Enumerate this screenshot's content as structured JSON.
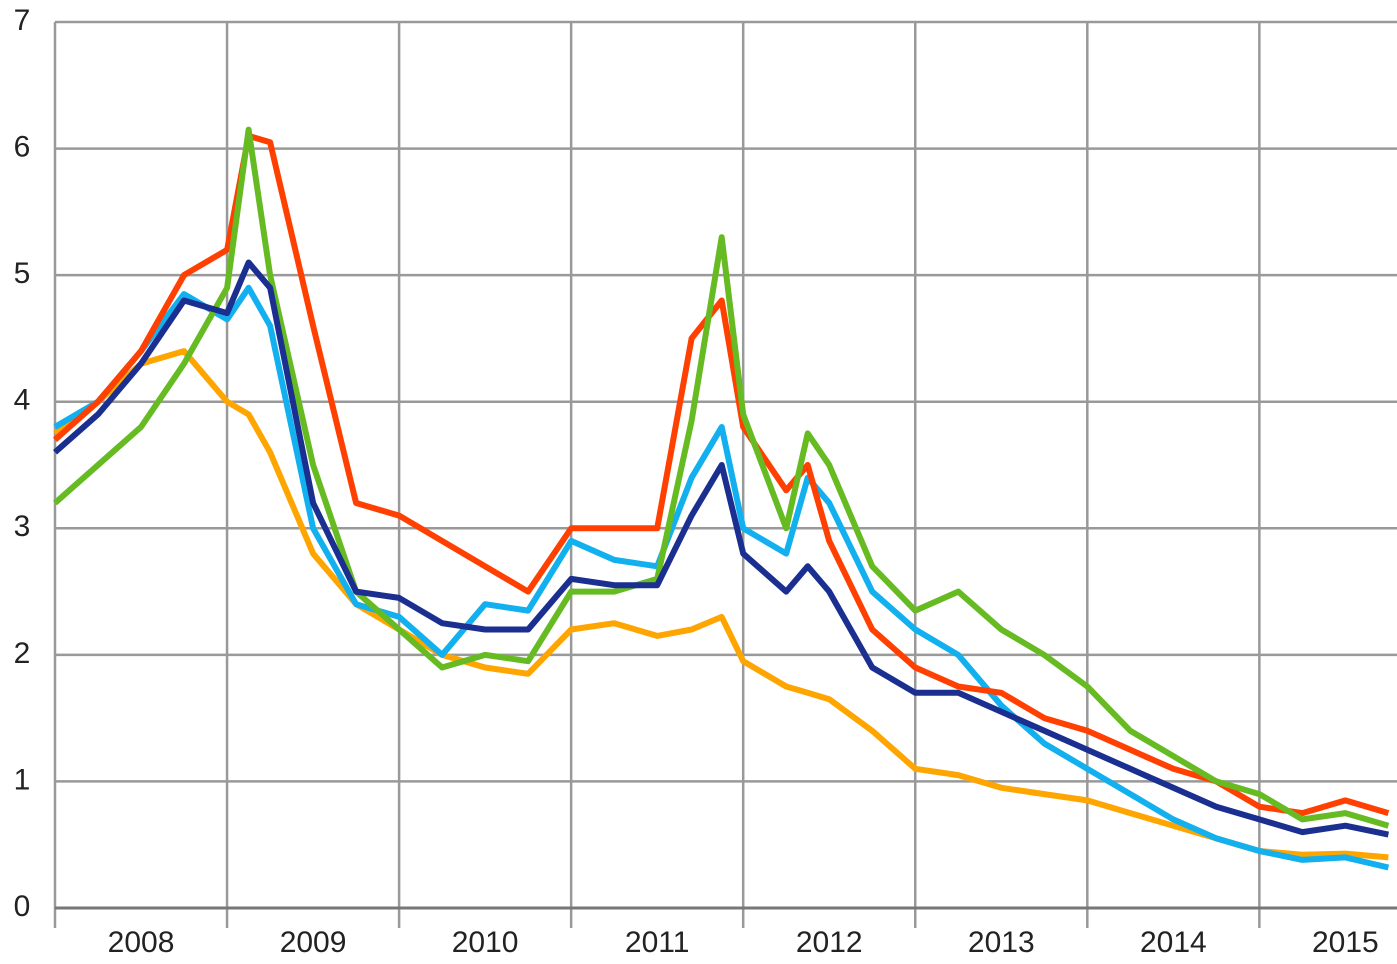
{
  "chart_data": {
    "type": "line",
    "x": [
      2008,
      2008.25,
      2008.5,
      2008.75,
      2009,
      2009.125,
      2009.25,
      2009.5,
      2009.75,
      2010,
      2010.25,
      2010.5,
      2010.75,
      2011,
      2011.25,
      2011.5,
      2011.7,
      2011.875,
      2012,
      2012.25,
      2012.375,
      2012.5,
      2012.75,
      2013,
      2013.25,
      2013.5,
      2013.75,
      2014,
      2014.25,
      2014.5,
      2014.75,
      2015,
      2015.25,
      2015.5,
      2015.75
    ],
    "series": [
      {
        "color": "#ffa500",
        "values": [
          3.75,
          4.0,
          4.3,
          4.4,
          4.0,
          3.9,
          3.6,
          2.8,
          2.4,
          2.2,
          2.0,
          1.9,
          1.85,
          2.2,
          2.25,
          2.15,
          2.2,
          2.3,
          1.95,
          1.75,
          1.7,
          1.65,
          1.4,
          1.1,
          1.05,
          0.95,
          0.9,
          0.85,
          0.75,
          0.65,
          0.55,
          0.45,
          0.42,
          0.43,
          0.4
        ]
      },
      {
        "color": "#12b0ee",
        "values": [
          3.8,
          4.0,
          4.4,
          4.85,
          4.65,
          4.9,
          4.6,
          3.0,
          2.4,
          2.3,
          2.0,
          2.4,
          2.35,
          2.9,
          2.75,
          2.7,
          3.4,
          3.8,
          3.0,
          2.8,
          3.4,
          3.2,
          2.5,
          2.2,
          2.0,
          1.6,
          1.3,
          1.1,
          0.9,
          0.7,
          0.55,
          0.45,
          0.38,
          0.4,
          0.32
        ]
      },
      {
        "color": "#ff4000",
        "values": [
          3.7,
          4.0,
          4.4,
          5.0,
          5.2,
          6.1,
          6.05,
          4.6,
          3.2,
          3.1,
          2.9,
          2.7,
          2.5,
          3.0,
          3.0,
          3.0,
          4.5,
          4.8,
          3.8,
          3.3,
          3.5,
          2.9,
          2.2,
          1.9,
          1.75,
          1.7,
          1.5,
          1.4,
          1.25,
          1.1,
          1.0,
          0.8,
          0.75,
          0.85,
          0.75
        ]
      },
      {
        "color": "#66bb22",
        "values": [
          3.2,
          3.5,
          3.8,
          4.3,
          4.9,
          6.15,
          5.0,
          3.5,
          2.5,
          2.2,
          1.9,
          2.0,
          1.95,
          2.5,
          2.5,
          2.6,
          3.85,
          5.3,
          3.9,
          3.0,
          3.75,
          3.5,
          2.7,
          2.35,
          2.5,
          2.2,
          2.0,
          1.75,
          1.4,
          1.2,
          1.0,
          0.9,
          0.7,
          0.75,
          0.65
        ]
      },
      {
        "color": "#1a2f8f",
        "values": [
          3.6,
          3.9,
          4.3,
          4.8,
          4.7,
          5.1,
          4.9,
          3.2,
          2.5,
          2.45,
          2.25,
          2.2,
          2.2,
          2.6,
          2.55,
          2.55,
          3.1,
          3.5,
          2.8,
          2.5,
          2.7,
          2.5,
          1.9,
          1.7,
          1.7,
          1.55,
          1.4,
          1.25,
          1.1,
          0.95,
          0.8,
          0.7,
          0.6,
          0.65,
          0.58
        ]
      }
    ],
    "xlim": [
      2008,
      2015.8
    ],
    "xticks": [
      {
        "value": 2008.5,
        "label": "2008"
      },
      {
        "value": 2009.5,
        "label": "2009"
      },
      {
        "value": 2010.5,
        "label": "2010"
      },
      {
        "value": 2011.5,
        "label": "2011"
      },
      {
        "value": 2012.5,
        "label": "2012"
      },
      {
        "value": 2013.5,
        "label": "2013"
      },
      {
        "value": 2014.5,
        "label": "2014"
      },
      {
        "value": 2015.5,
        "label": "2015"
      }
    ],
    "ylim": [
      0,
      7
    ],
    "yticks": [
      0,
      1,
      2,
      3,
      4,
      5,
      6,
      7
    ],
    "grid": true
  }
}
